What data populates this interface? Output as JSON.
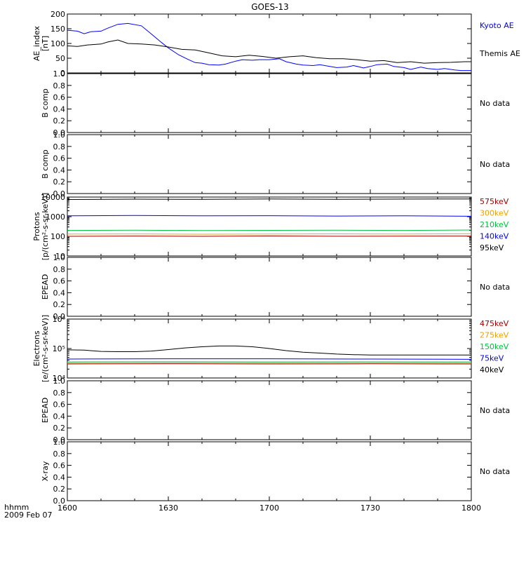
{
  "title": "GOES-13",
  "time_axis": {
    "corner_label": "hhmm",
    "date_label": "2009 Feb 07",
    "tick_labels": [
      "1600",
      "1630",
      "1700",
      "1730",
      "1800"
    ]
  },
  "chart_data": [
    {
      "type": "line",
      "panel": "ae",
      "ylabel": "AE_index\n[nT]",
      "ylim": [
        0,
        200
      ],
      "yticks": [
        0,
        50,
        100,
        150,
        200
      ],
      "ytick_labels": [
        "0",
        "50",
        "100",
        "150",
        "200"
      ],
      "x_unit": "minutes after 16:00 UT",
      "xlim": [
        0,
        120
      ],
      "series": [
        {
          "name": "Kyoto AE",
          "color": "#0000ff",
          "x": [
            0,
            3,
            5,
            7,
            10,
            12,
            15,
            18,
            22,
            25,
            28,
            30,
            33,
            36,
            38,
            40,
            42,
            45,
            47,
            50,
            52,
            55,
            57,
            60,
            63,
            65,
            68,
            70,
            73,
            75,
            78,
            80,
            83,
            85,
            88,
            90,
            92,
            95,
            97,
            100,
            102,
            105,
            107,
            110,
            112,
            115,
            117,
            120
          ],
          "values": [
            145,
            142,
            133,
            140,
            142,
            152,
            165,
            168,
            160,
            132,
            103,
            85,
            62,
            45,
            35,
            33,
            28,
            27,
            30,
            40,
            45,
            43,
            45,
            45,
            48,
            38,
            30,
            27,
            25,
            28,
            22,
            18,
            20,
            25,
            17,
            22,
            28,
            30,
            22,
            18,
            12,
            20,
            15,
            12,
            15,
            10,
            8,
            8
          ]
        },
        {
          "name": "Themis AE",
          "color": "#000000",
          "x": [
            0,
            3,
            6,
            10,
            12,
            15,
            18,
            22,
            26,
            30,
            34,
            38,
            42,
            46,
            50,
            54,
            58,
            62,
            66,
            70,
            74,
            78,
            82,
            86,
            90,
            94,
            98,
            102,
            106,
            110,
            114,
            118,
            120
          ],
          "values": [
            92,
            90,
            95,
            98,
            105,
            112,
            100,
            98,
            95,
            88,
            80,
            78,
            68,
            58,
            55,
            60,
            56,
            50,
            55,
            58,
            52,
            48,
            48,
            45,
            40,
            42,
            35,
            38,
            33,
            35,
            36,
            38,
            38
          ]
        }
      ]
    },
    {
      "type": "line",
      "panel": "bcomp1",
      "ylabel": "B comp",
      "ylim": [
        0,
        1
      ],
      "yticks": [
        0,
        0.2,
        0.4,
        0.6,
        0.8,
        1
      ],
      "ytick_labels": [
        "0.0",
        "0.2",
        "0.4",
        "0.6",
        "0.8",
        "1.0"
      ],
      "series": [],
      "note": "No data"
    },
    {
      "type": "line",
      "panel": "bcomp2",
      "ylabel": "B comp",
      "ylim": [
        0,
        1
      ],
      "yticks": [
        0,
        0.2,
        0.4,
        0.6,
        0.8,
        1
      ],
      "ytick_labels": [
        "0.0",
        "0.2",
        "0.4",
        "0.6",
        "0.8",
        "1.0"
      ],
      "series": [],
      "note": "No data"
    },
    {
      "type": "line",
      "panel": "protons",
      "ylabel": "Protons\n[p/(cm²-s-sr-keV)]",
      "yscale": "log",
      "ylim": [
        10,
        10000
      ],
      "yticks": [
        10,
        100,
        1000,
        10000
      ],
      "ytick_labels": [
        "10",
        "100",
        "1000",
        "10000"
      ],
      "series": [
        {
          "name": "575keV",
          "color": "#a00000",
          "x": [
            0,
            20,
            40,
            60,
            80,
            100,
            120
          ],
          "values": [
            100,
            103,
            100,
            104,
            101,
            102,
            103
          ]
        },
        {
          "name": "300keV",
          "color": "#f0a000",
          "x": [
            0,
            20,
            40,
            60,
            80,
            100,
            120
          ],
          "values": [
            130,
            132,
            128,
            131,
            133,
            130,
            134
          ]
        },
        {
          "name": "210keV",
          "color": "#00c040",
          "x": [
            0,
            20,
            40,
            60,
            80,
            100,
            120
          ],
          "values": [
            200,
            205,
            198,
            202,
            206,
            200,
            210
          ]
        },
        {
          "name": "140keV",
          "color": "#0000ff",
          "x": [
            0,
            20,
            40,
            60,
            80,
            100,
            120
          ],
          "values": [
            1100,
            1150,
            1100,
            1120,
            1080,
            1100,
            1050
          ]
        },
        {
          "name": "95keV",
          "color": "#000000",
          "x": [
            0,
            20,
            40,
            60,
            80,
            100,
            120
          ],
          "values": [
            7500,
            7800,
            7600,
            8000,
            7700,
            7900,
            8000
          ]
        }
      ]
    },
    {
      "type": "line",
      "panel": "epead1",
      "ylabel": "EPEAD",
      "ylim": [
        0,
        1
      ],
      "yticks": [
        0,
        0.2,
        0.4,
        0.6,
        0.8,
        1
      ],
      "ytick_labels": [
        "0.0",
        "0.2",
        "0.4",
        "0.6",
        "0.8",
        "1.0"
      ],
      "series": [],
      "note": "No data"
    },
    {
      "type": "line",
      "panel": "electrons",
      "ylabel": "Electrons\n[e/(cm²-s-sr-keV)]",
      "yscale": "log",
      "ylim": [
        10000,
        1000000
      ],
      "yticks": [
        10000,
        100000,
        1000000
      ],
      "ytick_labels": [
        "10⁴",
        "10⁵",
        "10⁶"
      ],
      "series": [
        {
          "name": "475keV",
          "color": "#a00000",
          "x": [
            0,
            30,
            60,
            90,
            120
          ],
          "values": [
            30000,
            30500,
            30000,
            30200,
            30000
          ]
        },
        {
          "name": "275keV",
          "color": "#f0a000",
          "x": [
            0,
            30,
            60,
            90,
            120
          ],
          "values": [
            32000,
            32500,
            32000,
            32300,
            32000
          ]
        },
        {
          "name": "150keV",
          "color": "#00c040",
          "x": [
            0,
            30,
            60,
            90,
            120
          ],
          "values": [
            35000,
            35500,
            35000,
            35200,
            35000
          ]
        },
        {
          "name": "75keV",
          "color": "#0000ff",
          "x": [
            0,
            30,
            60,
            90,
            120
          ],
          "values": [
            44000,
            45000,
            45000,
            44000,
            43000
          ]
        },
        {
          "name": "40keV",
          "color": "#000000",
          "x": [
            0,
            5,
            10,
            15,
            20,
            25,
            30,
            35,
            40,
            45,
            50,
            55,
            60,
            65,
            70,
            75,
            80,
            85,
            90,
            95,
            100,
            105,
            110,
            115,
            120
          ],
          "values": [
            90000,
            88000,
            80000,
            78000,
            78000,
            82000,
            92000,
            105000,
            115000,
            122000,
            122000,
            115000,
            100000,
            85000,
            75000,
            70000,
            65000,
            62000,
            60000,
            60000,
            60000,
            60000,
            60000,
            60000,
            60000
          ]
        }
      ]
    },
    {
      "type": "line",
      "panel": "epead2",
      "ylabel": "EPEAD",
      "ylim": [
        0,
        1
      ],
      "yticks": [
        0,
        0.2,
        0.4,
        0.6,
        0.8,
        1
      ],
      "ytick_labels": [
        "0.0",
        "0.2",
        "0.4",
        "0.6",
        "0.8",
        "1.0"
      ],
      "series": [],
      "note": "No data"
    },
    {
      "type": "line",
      "panel": "xray",
      "ylabel": "X-ray",
      "ylim": [
        0,
        1
      ],
      "yticks": [
        0,
        0.2,
        0.4,
        0.6,
        0.8,
        1
      ],
      "ytick_labels": [
        "0.0",
        "0.2",
        "0.4",
        "0.6",
        "0.8",
        "1.0"
      ],
      "series": [],
      "note": "No data"
    }
  ]
}
